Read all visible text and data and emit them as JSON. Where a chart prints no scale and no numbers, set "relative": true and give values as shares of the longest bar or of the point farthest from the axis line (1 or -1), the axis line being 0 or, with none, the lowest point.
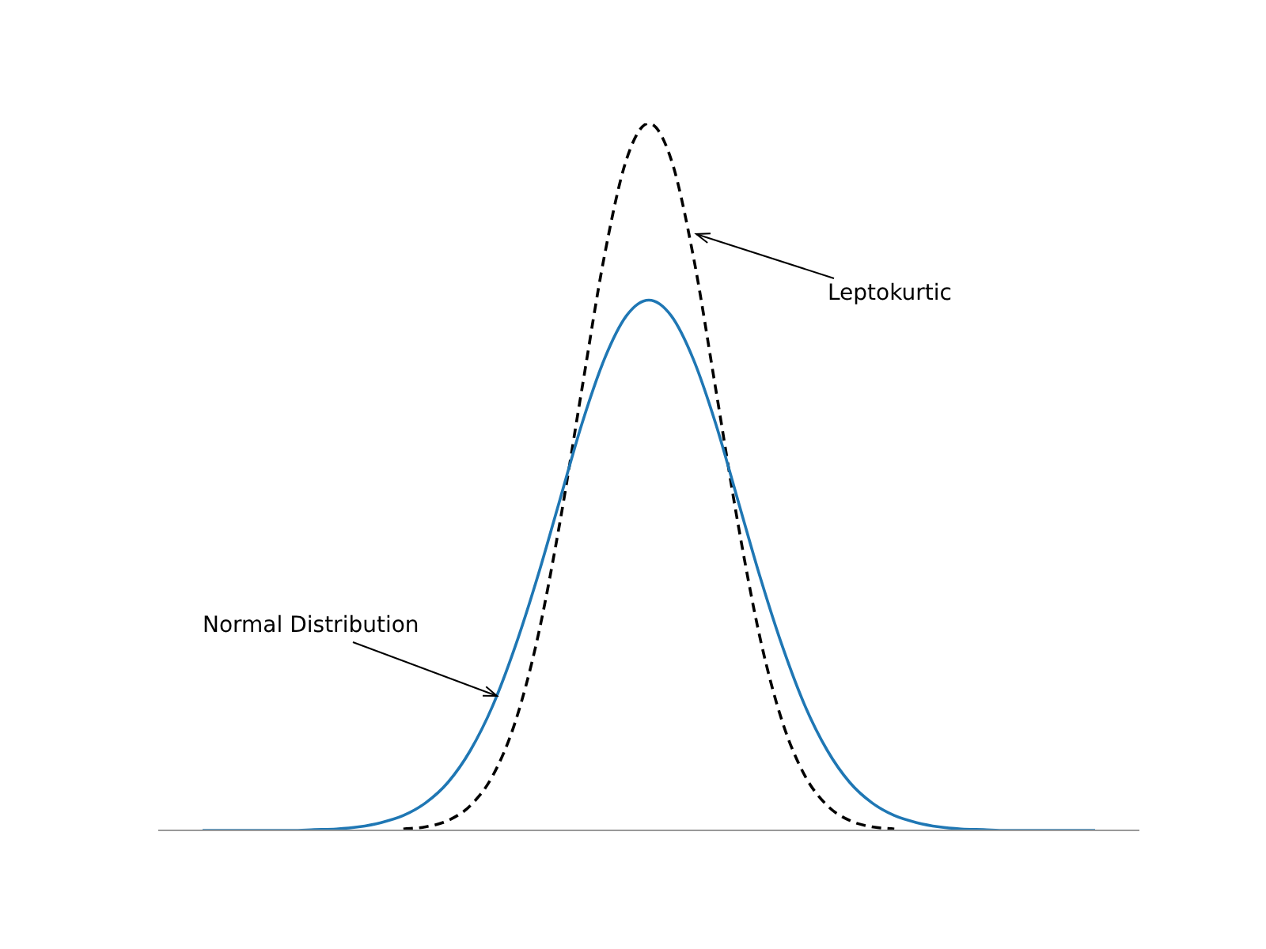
{
  "chart_data": {
    "type": "line",
    "relative": true,
    "legend": false,
    "marker": "none",
    "categories": [
      null,
      null,
      null,
      null,
      null,
      null,
      null,
      null,
      null,
      null,
      null,
      null,
      null,
      null,
      null,
      null,
      null,
      null,
      null,
      null,
      null,
      null,
      null,
      null,
      null,
      null,
      null,
      null,
      null,
      null,
      null,
      null,
      null,
      null,
      null,
      null,
      null,
      null,
      null,
      null,
      null
    ],
    "series": [
      {
        "color": "#1f77b4",
        "line_style": "solid",
        "values": [
          0,
          0,
          0,
          0,
          0,
          0.001,
          0.002,
          0.005,
          0.011,
          0.021,
          0.039,
          0.068,
          0.113,
          0.176,
          0.259,
          0.357,
          0.466,
          0.575,
          0.666,
          0.728,
          0.75,
          0.728,
          0.666,
          0.575,
          0.466,
          0.357,
          0.259,
          0.176,
          0.113,
          0.068,
          0.039,
          0.021,
          0.011,
          0.005,
          0.002,
          0.001,
          0,
          0,
          0,
          0,
          0
        ]
      },
      {
        "color": "#000000",
        "line_style": "dashed",
        "values": [
          null,
          null,
          null,
          null,
          null,
          null,
          null,
          null,
          null,
          0.002,
          0.005,
          0.014,
          0.035,
          0.077,
          0.152,
          0.27,
          0.433,
          0.624,
          0.811,
          0.949,
          1,
          0.949,
          0.811,
          0.624,
          0.433,
          0.27,
          0.152,
          0.077,
          0.035,
          0.014,
          0.005,
          0.002,
          null,
          null,
          null,
          null,
          null,
          null,
          null,
          null,
          null
        ]
      }
    ],
    "annotations": [
      "Normal Distribution",
      "Leptokurtic"
    ]
  }
}
